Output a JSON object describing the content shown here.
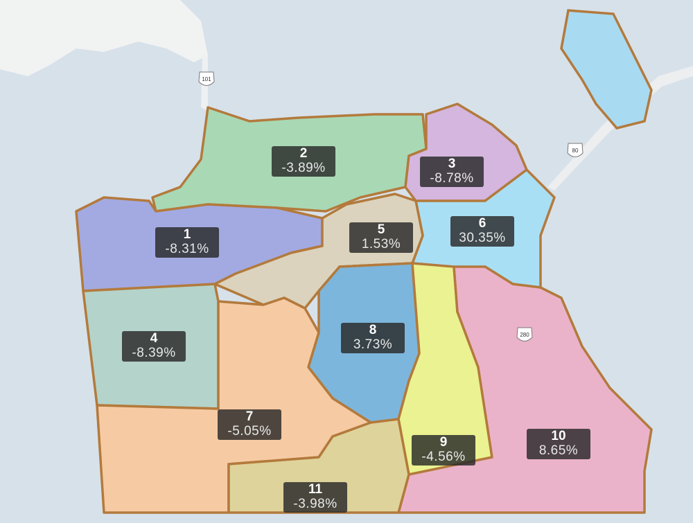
{
  "districts": [
    {
      "number": "1",
      "change": "-8.31%"
    },
    {
      "number": "2",
      "change": "-3.89%"
    },
    {
      "number": "3",
      "change": "-8.78%"
    },
    {
      "number": "4",
      "change": "-8.39%"
    },
    {
      "number": "5",
      "change": "1.53%"
    },
    {
      "number": "6",
      "change": "30.35%"
    },
    {
      "number": "7",
      "change": "-5.05%"
    },
    {
      "number": "8",
      "change": "3.73%"
    },
    {
      "number": "9",
      "change": "-4.56%"
    },
    {
      "number": "10",
      "change": "8.65%"
    },
    {
      "number": "11",
      "change": "-3.98%"
    }
  ],
  "highway_shields": [
    "101",
    "80",
    "280"
  ]
}
